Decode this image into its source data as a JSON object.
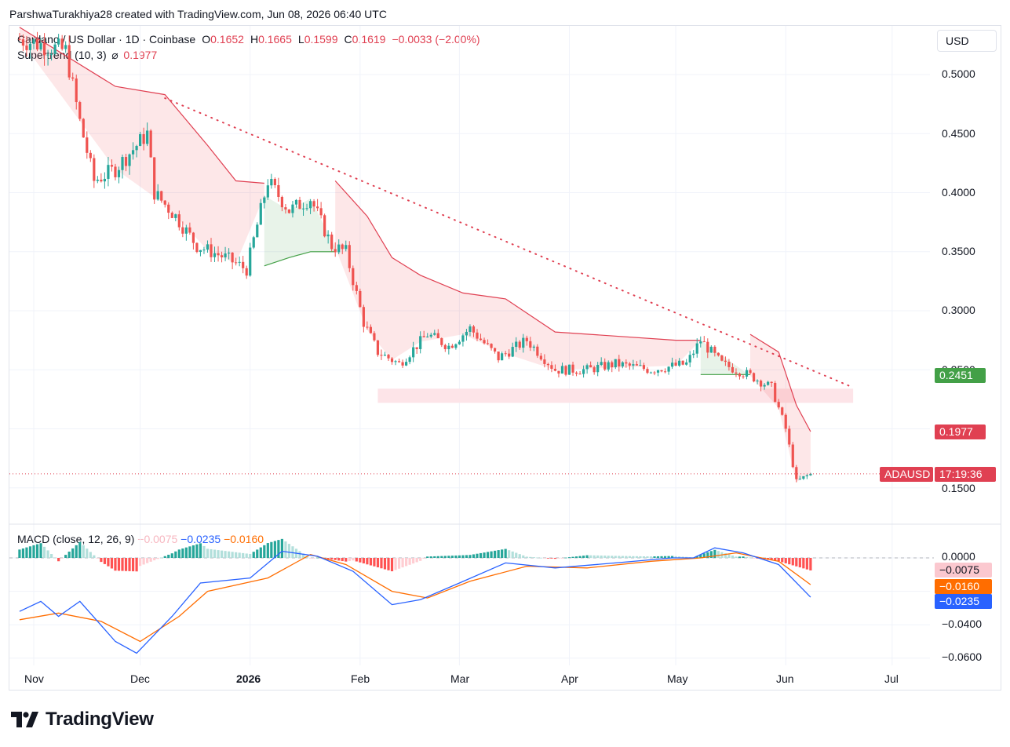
{
  "header": {
    "attribution": "ParshwaTurakhiya28 created with TradingView.com, Jun 08, 2026 06:40 UTC"
  },
  "legend": {
    "symbol": "Cardano / US Dollar · 1D · Coinbase",
    "o_label": "O",
    "o_value": "0.1652",
    "h_label": "H",
    "h_value": "0.1665",
    "l_label": "L",
    "l_value": "0.1599",
    "c_label": "C",
    "c_value": "0.1619",
    "change": "−0.0033 (−2.00%)",
    "supertrend_label": "Supertrend (10, 3)",
    "supertrend_icon": "eye-slash-icon",
    "supertrend_value": "0.1977",
    "macd_label": "MACD (close, 12, 26, 9)",
    "macd_hist": "−0.0075",
    "macd_line": "−0.0235",
    "macd_signal": "−0.0160"
  },
  "currency_button": "USD",
  "price_axis": [
    "0.5000",
    "0.4500",
    "0.4000",
    "0.3500",
    "0.3000",
    "0.2500",
    "0.1500"
  ],
  "macd_axis": [
    "0.0000",
    "−0.0400",
    "−0.0600"
  ],
  "x_axis": [
    "Nov",
    "Dec",
    "2026",
    "Feb",
    "Mar",
    "Apr",
    "May",
    "Jun",
    "Jul"
  ],
  "badges": {
    "supertrend_up": "0.2451",
    "supertrend_down": "0.1977",
    "symbol": "ADAUSD",
    "countdown": "17:19:36",
    "hist": "−0.0075",
    "signal": "−0.0160",
    "macd": "−0.0235"
  },
  "colors": {
    "up": "#26a69a",
    "down": "#ef5350",
    "supertrend_down": "#e04052",
    "supertrend_up": "#43a047",
    "macd_line": "#2962ff",
    "signal_line": "#ff6d00",
    "text_red": "#e04052"
  },
  "brand": "TradingView",
  "chart_data": {
    "type": "candlestick",
    "symbol": "ADAUSD",
    "timeframe": "1D",
    "y_range": [
      0.13,
      0.54
    ],
    "last": {
      "open": 0.1652,
      "high": 0.1665,
      "low": 0.1599,
      "close": 0.1619
    },
    "price_path": [
      [
        "2025-10-28",
        0.53
      ],
      [
        "2025-11-10",
        0.52
      ],
      [
        "2025-11-14",
        0.46
      ],
      [
        "2025-11-18",
        0.41
      ],
      [
        "2025-11-24",
        0.42
      ],
      [
        "2025-12-03",
        0.45
      ],
      [
        "2025-12-05",
        0.4
      ],
      [
        "2025-12-11",
        0.38
      ],
      [
        "2025-12-17",
        0.355
      ],
      [
        "2025-12-25",
        0.345
      ],
      [
        "2025-12-31",
        0.335
      ],
      [
        "2026-01-06",
        0.41
      ],
      [
        "2026-01-12",
        0.385
      ],
      [
        "2026-01-18",
        0.395
      ],
      [
        "2026-01-24",
        0.355
      ],
      [
        "2026-01-28",
        0.35
      ],
      [
        "2026-02-02",
        0.29
      ],
      [
        "2026-02-06",
        0.265
      ],
      [
        "2026-02-12",
        0.255
      ],
      [
        "2026-02-20",
        0.28
      ],
      [
        "2026-02-26",
        0.27
      ],
      [
        "2026-03-04",
        0.285
      ],
      [
        "2026-03-12",
        0.26
      ],
      [
        "2026-03-20",
        0.275
      ],
      [
        "2026-03-28",
        0.25
      ],
      [
        "2026-04-06",
        0.25
      ],
      [
        "2026-04-14",
        0.255
      ],
      [
        "2026-04-24",
        0.25
      ],
      [
        "2026-05-04",
        0.255
      ],
      [
        "2026-05-08",
        0.275
      ],
      [
        "2026-05-14",
        0.255
      ],
      [
        "2026-05-22",
        0.245
      ],
      [
        "2026-05-28",
        0.235
      ],
      [
        "2026-06-01",
        0.2
      ],
      [
        "2026-06-04",
        0.155
      ],
      [
        "2026-06-08",
        0.1619
      ]
    ],
    "supertrend": [
      {
        "from": "2025-10-28",
        "to": "2026-01-05",
        "dir": "down",
        "points": [
          [
            "2025-10-28",
            0.54
          ],
          [
            "2025-11-24",
            0.49
          ],
          [
            "2025-12-08",
            0.483
          ],
          [
            "2025-12-20",
            0.44
          ],
          [
            "2025-12-28",
            0.41
          ],
          [
            "2026-01-05",
            0.408
          ]
        ]
      },
      {
        "from": "2026-01-05",
        "to": "2026-01-25",
        "dir": "up",
        "points": [
          [
            "2026-01-05",
            0.338
          ],
          [
            "2026-01-12",
            0.345
          ],
          [
            "2026-01-18",
            0.35
          ],
          [
            "2026-01-25",
            0.35
          ]
        ]
      },
      {
        "from": "2026-01-25",
        "to": "2026-05-08",
        "dir": "down",
        "points": [
          [
            "2026-01-25",
            0.41
          ],
          [
            "2026-02-03",
            0.38
          ],
          [
            "2026-02-10",
            0.345
          ],
          [
            "2026-02-18",
            0.33
          ],
          [
            "2026-03-02",
            0.315
          ],
          [
            "2026-03-14",
            0.31
          ],
          [
            "2026-03-28",
            0.282
          ],
          [
            "2026-05-01",
            0.275
          ],
          [
            "2026-05-08",
            0.275
          ]
        ]
      },
      {
        "from": "2026-05-08",
        "to": "2026-05-22",
        "dir": "up",
        "points": [
          [
            "2026-05-08",
            0.246
          ],
          [
            "2026-05-22",
            0.246
          ]
        ]
      },
      {
        "from": "2026-05-22",
        "to": "2026-06-08",
        "dir": "down",
        "points": [
          [
            "2026-05-22",
            0.28
          ],
          [
            "2026-05-30",
            0.265
          ],
          [
            "2026-06-04",
            0.22
          ],
          [
            "2026-06-08",
            0.1977
          ]
        ]
      }
    ],
    "trendline": {
      "from": [
        "2025-12-08",
        0.48
      ],
      "to": [
        "2026-06-20",
        0.235
      ],
      "style": "dotted"
    },
    "support_zone": {
      "from": "2026-02-06",
      "to": "2026-06-20",
      "y": [
        0.222,
        0.234
      ]
    },
    "current_price_line": 0.1619,
    "macd": {
      "y_range": [
        -0.065,
        0.01
      ],
      "macd_line": [
        [
          "2025-10-28",
          -0.032
        ],
        [
          "2025-11-03",
          -0.026
        ],
        [
          "2025-11-08",
          -0.035
        ],
        [
          "2025-11-14",
          -0.026
        ],
        [
          "2025-11-24",
          -0.05
        ],
        [
          "2025-11-30",
          -0.057
        ],
        [
          "2025-12-10",
          -0.035
        ],
        [
          "2025-12-18",
          -0.015
        ],
        [
          "2026-01-01",
          -0.012
        ],
        [
          "2026-01-10",
          0.004
        ],
        [
          "2026-01-20",
          0.001
        ],
        [
          "2026-01-30",
          -0.008
        ],
        [
          "2026-02-10",
          -0.028
        ],
        [
          "2026-02-18",
          -0.025
        ],
        [
          "2026-03-01",
          -0.015
        ],
        [
          "2026-03-14",
          -0.003
        ],
        [
          "2026-03-28",
          -0.006
        ],
        [
          "2026-04-14",
          -0.003
        ],
        [
          "2026-04-30",
          0.0
        ],
        [
          "2026-05-06",
          0.0
        ],
        [
          "2026-05-12",
          0.006
        ],
        [
          "2026-05-20",
          0.003
        ],
        [
          "2026-05-30",
          -0.004
        ],
        [
          "2026-06-08",
          -0.0235
        ]
      ],
      "signal_line": [
        [
          "2025-10-28",
          -0.037
        ],
        [
          "2025-11-08",
          -0.033
        ],
        [
          "2025-11-20",
          -0.038
        ],
        [
          "2025-12-01",
          -0.05
        ],
        [
          "2025-12-12",
          -0.035
        ],
        [
          "2025-12-20",
          -0.02
        ],
        [
          "2026-01-06",
          -0.012
        ],
        [
          "2026-01-18",
          0.002
        ],
        [
          "2026-01-28",
          -0.004
        ],
        [
          "2026-02-10",
          -0.02
        ],
        [
          "2026-02-20",
          -0.024
        ],
        [
          "2026-03-04",
          -0.014
        ],
        [
          "2026-03-20",
          -0.005
        ],
        [
          "2026-04-06",
          -0.006
        ],
        [
          "2026-04-24",
          -0.002
        ],
        [
          "2026-05-08",
          0.0
        ],
        [
          "2026-05-18",
          0.003
        ],
        [
          "2026-05-30",
          -0.002
        ],
        [
          "2026-06-08",
          -0.016
        ]
      ]
    }
  }
}
